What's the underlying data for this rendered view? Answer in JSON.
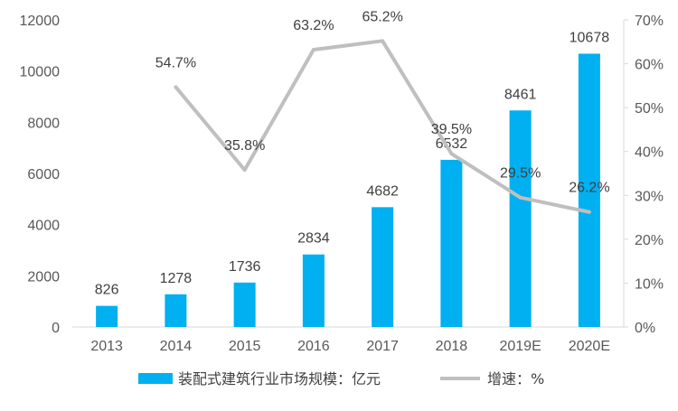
{
  "chart_data": {
    "type": "bar",
    "categories": [
      "2013",
      "2014",
      "2015",
      "2016",
      "2017",
      "2018",
      "2019E",
      "2020E"
    ],
    "series": [
      {
        "name": "装配式建筑行业市场规模：亿元",
        "type": "bar",
        "axis": "left",
        "color": "#00B0F0",
        "values": [
          826,
          1278,
          1736,
          2834,
          4682,
          6532,
          8461,
          10678
        ],
        "labels": [
          "826",
          "1278",
          "1736",
          "2834",
          "4682",
          "6532",
          "8461",
          "10678"
        ]
      },
      {
        "name": "增速：%",
        "type": "line",
        "axis": "right",
        "color": "#BFBFBF",
        "values": [
          null,
          54.7,
          35.8,
          63.2,
          65.2,
          39.5,
          29.5,
          26.2
        ],
        "labels": [
          "",
          "54.7%",
          "35.8%",
          "63.2%",
          "65.2%",
          "39.5%",
          "29.5%",
          "26.2%"
        ]
      }
    ],
    "y_left": {
      "min": 0,
      "max": 12000,
      "ticks": [
        "0",
        "2000",
        "4000",
        "6000",
        "8000",
        "10000",
        "12000"
      ]
    },
    "y_right": {
      "min": 0,
      "max": 70,
      "ticks": [
        "0%",
        "10%",
        "20%",
        "30%",
        "40%",
        "50%",
        "60%",
        "70%"
      ]
    },
    "grid": false,
    "legend_position": "bottom"
  }
}
